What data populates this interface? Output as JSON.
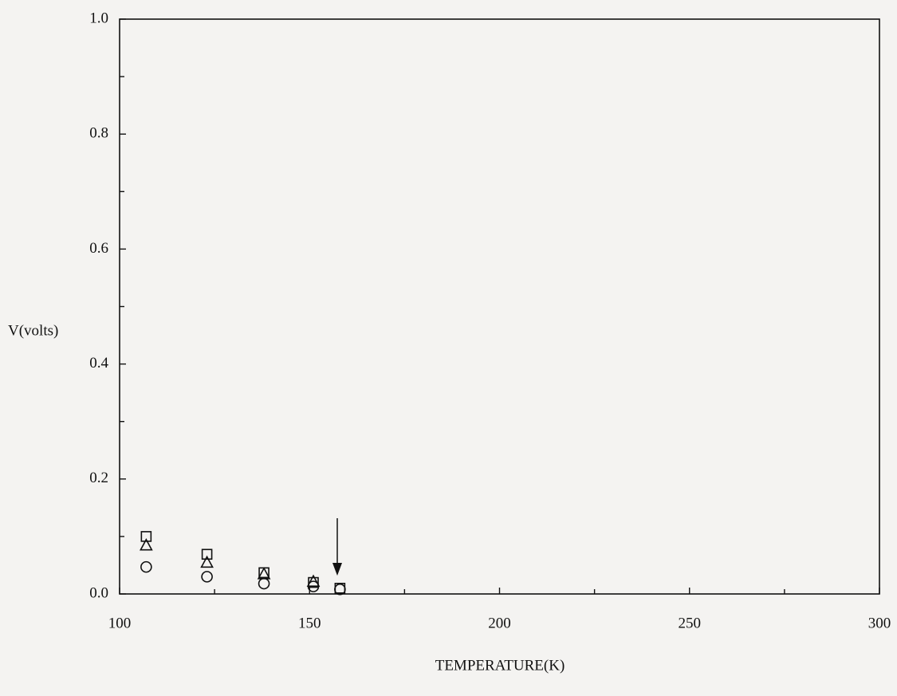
{
  "chart_data": {
    "type": "scatter",
    "x_label": "TEMPERATURE(K)",
    "y_label": "V(volts)",
    "xlim": [
      100,
      300
    ],
    "ylim": [
      0,
      1
    ],
    "xticks": [
      100,
      150,
      200,
      250,
      300
    ],
    "xminorticks": [
      125,
      175,
      225,
      275
    ],
    "yticks": [
      {
        "value": 0,
        "label": "0.0"
      },
      0.2,
      0.4,
      0.6,
      0.8,
      {
        "value": 1,
        "label": "1.0"
      }
    ],
    "yminorticks": [
      0.1,
      0.3,
      0.5,
      0.7,
      0.9
    ],
    "series": [
      {
        "marker": "square",
        "color": "#111111",
        "x": [
          107,
          123,
          138,
          151,
          158
        ],
        "values": [
          0.1,
          0.069,
          0.037,
          0.02,
          0.01
        ]
      },
      {
        "marker": "triangle",
        "color": "#111111",
        "x": [
          107,
          123,
          138,
          151
        ],
        "values": [
          0.085,
          0.055,
          0.035,
          0.022
        ]
      },
      {
        "marker": "circle",
        "color": "#111111",
        "x": [
          107,
          123,
          138,
          151,
          158
        ],
        "values": [
          0.047,
          0.03,
          0.018,
          0.013,
          0.008
        ]
      }
    ]
  }
}
